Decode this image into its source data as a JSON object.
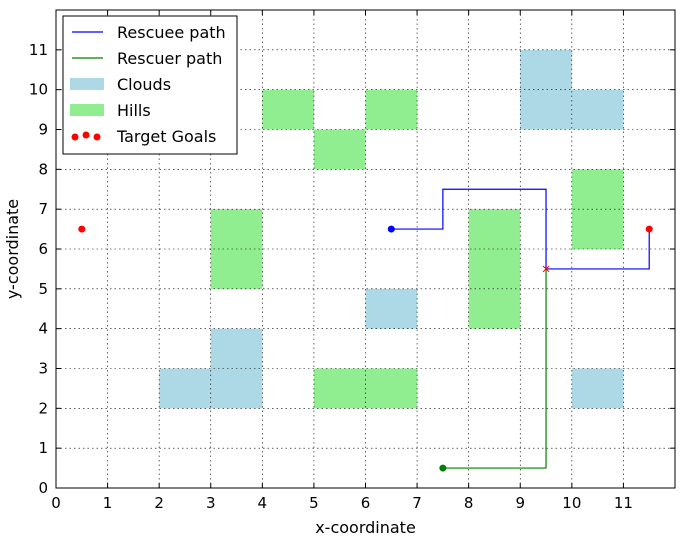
{
  "chart_data": {
    "type": "scatter",
    "title": "",
    "xlabel": "x-coordinate",
    "ylabel": "y-coordinate",
    "xlim": [
      0,
      12
    ],
    "ylim": [
      0,
      12
    ],
    "x_ticks": [
      0,
      1,
      2,
      3,
      4,
      5,
      6,
      7,
      8,
      9,
      10,
      11
    ],
    "y_ticks": [
      0,
      1,
      2,
      3,
      4,
      5,
      6,
      7,
      8,
      9,
      10,
      11
    ],
    "grid": true,
    "legend_position": "top-left",
    "legend": [
      {
        "label": "Rescuee path",
        "kind": "line",
        "color": "#0000ff"
      },
      {
        "label": "Rescuer path",
        "kind": "line",
        "color": "#008000"
      },
      {
        "label": "Clouds",
        "kind": "patch",
        "color": "#add8e6"
      },
      {
        "label": "Hills",
        "kind": "patch",
        "color": "#90ee90"
      },
      {
        "label": "Target Goals",
        "kind": "scatter",
        "color": "#ff0000"
      }
    ],
    "clouds": [
      {
        "x": 9,
        "y": 9
      },
      {
        "x": 9,
        "y": 10
      },
      {
        "x": 10,
        "y": 9
      },
      {
        "x": 6,
        "y": 4
      },
      {
        "x": 3,
        "y": 3
      },
      {
        "x": 2,
        "y": 2
      },
      {
        "x": 3,
        "y": 2
      },
      {
        "x": 10,
        "y": 2
      }
    ],
    "hills": [
      {
        "x": 4,
        "y": 9
      },
      {
        "x": 6,
        "y": 9
      },
      {
        "x": 5,
        "y": 8
      },
      {
        "x": 3,
        "y": 6
      },
      {
        "x": 3,
        "y": 5
      },
      {
        "x": 8,
        "y": 6
      },
      {
        "x": 8,
        "y": 5
      },
      {
        "x": 8,
        "y": 4
      },
      {
        "x": 10,
        "y": 7
      },
      {
        "x": 10,
        "y": 6
      },
      {
        "x": 5,
        "y": 2
      },
      {
        "x": 6,
        "y": 2
      }
    ],
    "series": [
      {
        "name": "Rescuee path",
        "color": "#0000ff",
        "points": [
          [
            6.5,
            6.5
          ],
          [
            7.5,
            6.5
          ],
          [
            7.5,
            7.5
          ],
          [
            9.5,
            7.5
          ],
          [
            9.5,
            5.5
          ],
          [
            11.5,
            5.5
          ],
          [
            11.5,
            6.5
          ]
        ]
      },
      {
        "name": "Rescuer path",
        "color": "#008000",
        "points": [
          [
            7.5,
            0.5
          ],
          [
            9.5,
            0.5
          ],
          [
            9.5,
            5.5
          ]
        ]
      }
    ],
    "targets": [
      [
        0.5,
        6.5
      ],
      [
        11.5,
        6.5
      ]
    ],
    "meeting_point": [
      9.5,
      5.5
    ]
  }
}
